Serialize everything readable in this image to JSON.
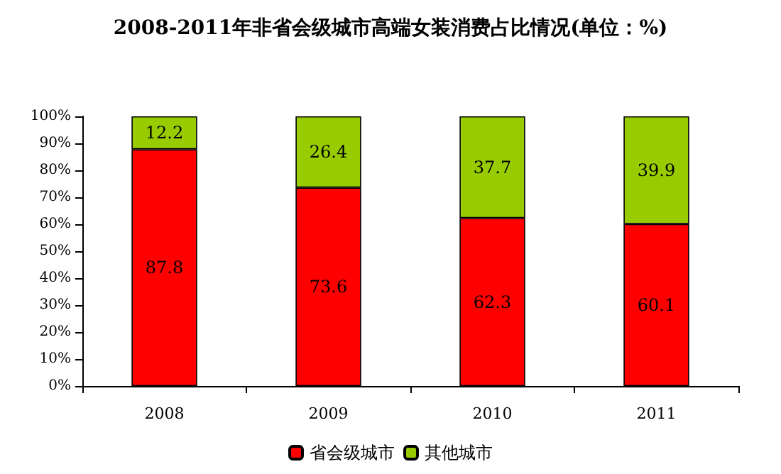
{
  "chart_data": {
    "type": "bar",
    "title": "2008-2011年非省会级城市高端女装消费占比情况(单位：%)",
    "categories": [
      "2008",
      "2009",
      "2010",
      "2011"
    ],
    "series": [
      {
        "name": "省会级城市",
        "color": "#ff0000",
        "values": [
          87.8,
          73.6,
          62.3,
          60.1
        ]
      },
      {
        "name": "其他城市",
        "color": "#99cc00",
        "values": [
          12.2,
          26.4,
          37.7,
          39.9
        ]
      }
    ],
    "stacked": true,
    "data_labels": true,
    "legend": "bottom",
    "grid": false,
    "ylim": [
      0,
      100
    ],
    "yticks": [
      {
        "value": 0,
        "label": "0%"
      },
      {
        "value": 10,
        "label": "10%"
      },
      {
        "value": 20,
        "label": "20%"
      },
      {
        "value": 30,
        "label": "30%"
      },
      {
        "value": 40,
        "label": "40%"
      },
      {
        "value": 50,
        "label": "50%"
      },
      {
        "value": 60,
        "label": "60%"
      },
      {
        "value": 70,
        "label": "70%"
      },
      {
        "value": 80,
        "label": "80%"
      },
      {
        "value": 90,
        "label": "90%"
      },
      {
        "value": 100,
        "label": "100%"
      }
    ]
  }
}
